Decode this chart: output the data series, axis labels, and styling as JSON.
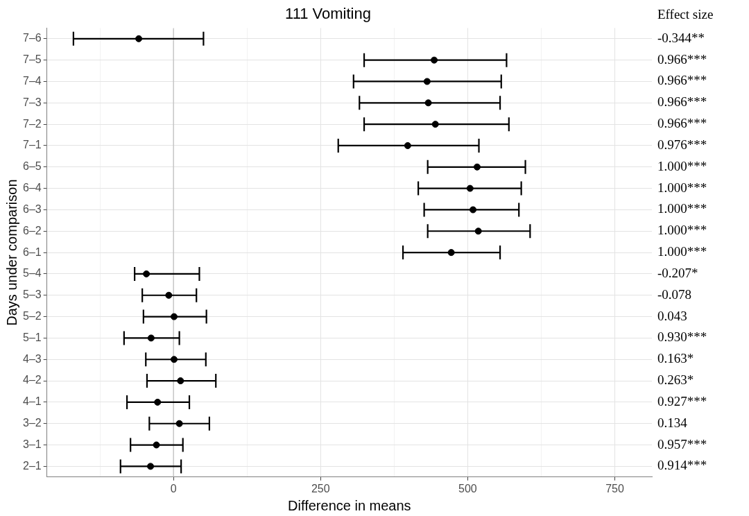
{
  "chart_data": {
    "type": "scatter",
    "orientation": "horizontal",
    "title": "111 Vomiting",
    "xlabel": "Difference in means",
    "ylabel": "Days under comparison",
    "categories": [
      "7–6",
      "7–5",
      "7–4",
      "7–3",
      "7–2",
      "7–1",
      "6–5",
      "6–4",
      "6–3",
      "6–2",
      "6–1",
      "5–4",
      "5–3",
      "5–2",
      "5–1",
      "4–3",
      "4–2",
      "4–1",
      "3–2",
      "3–1",
      "2–1"
    ],
    "values": [
      -59,
      443,
      431,
      433,
      445,
      398,
      516,
      504,
      509,
      518,
      472,
      -46,
      -8,
      1,
      -38,
      1,
      12,
      -27,
      10,
      -29,
      -39
    ],
    "errors": [
      [
        -170,
        51
      ],
      [
        324,
        566
      ],
      [
        306,
        557
      ],
      [
        316,
        555
      ],
      [
        324,
        570
      ],
      [
        280,
        519
      ],
      [
        432,
        598
      ],
      [
        416,
        591
      ],
      [
        426,
        587
      ],
      [
        432,
        606
      ],
      [
        390,
        555
      ],
      [
        -66,
        44
      ],
      [
        -53,
        39
      ],
      [
        -51,
        56
      ],
      [
        -84,
        10
      ],
      [
        -47,
        55
      ],
      [
        -45,
        72
      ],
      [
        -79,
        27
      ],
      [
        -41,
        61
      ],
      [
        -73,
        16
      ],
      [
        -90,
        13
      ]
    ],
    "annotations": [
      "Effect size",
      "-0.344**",
      "0.966***",
      "0.966***",
      "0.966***",
      "0.966***",
      "0.976***",
      "1.000***",
      "1.000***",
      "1.000***",
      "1.000***",
      "1.000***",
      "-0.207*",
      "-0.078",
      "0.043",
      "0.930***",
      "0.163*",
      "0.263*",
      "0.927***",
      "0.134",
      "0.957***",
      "0.914***"
    ],
    "color": "#000000",
    "marker": "circle",
    "xlim": [
      -215,
      813
    ],
    "xticks": [
      {
        "value": -125,
        "label": null
      },
      0,
      {
        "value": 125,
        "label": null
      },
      250,
      {
        "value": 375,
        "label": null
      },
      500,
      {
        "value": 625,
        "label": null
      },
      750
    ],
    "ref_lines": [
      {
        "axis": "x",
        "value": 0,
        "color": "#bebebe"
      }
    ],
    "grid": true,
    "legend": false
  }
}
